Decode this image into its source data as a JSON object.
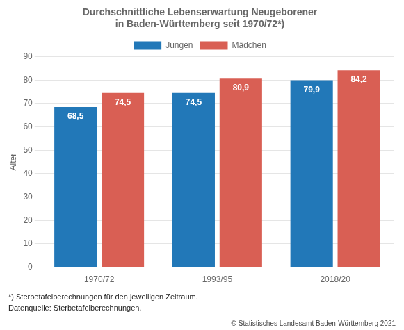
{
  "chart_data": {
    "type": "bar",
    "title": [
      "Durchschnittliche Lebenserwartung Neugeborener",
      "in Baden-Württemberg seit 1970/72*)"
    ],
    "y_label": "Alter",
    "categories": [
      "1970/72",
      "1993/95",
      "2018/20"
    ],
    "series": [
      {
        "name": "Jungen",
        "color": "#2278b8",
        "values": [
          68.5,
          74.5,
          79.9
        ],
        "value_labels": [
          "68,5",
          "74,5",
          "79,9"
        ]
      },
      {
        "name": "Mädchen",
        "color": "#d95f54",
        "values": [
          74.5,
          80.9,
          84.2
        ],
        "value_labels": [
          "74,5",
          "80,9",
          "84,2"
        ]
      }
    ],
    "ylim": [
      0,
      90
    ],
    "yticks": [
      0,
      10,
      20,
      30,
      40,
      50,
      60,
      70,
      80,
      90
    ],
    "grid": true,
    "legend": "upper center",
    "data_labels": true,
    "annotations": [
      "*) Sterbetafelberechnungen für den jeweiligen Zeitraum.",
      "Datenquelle: Sterbetafelberechnungen.",
      "© Statistisches Landesamt Baden-Württemberg 2021"
    ]
  }
}
